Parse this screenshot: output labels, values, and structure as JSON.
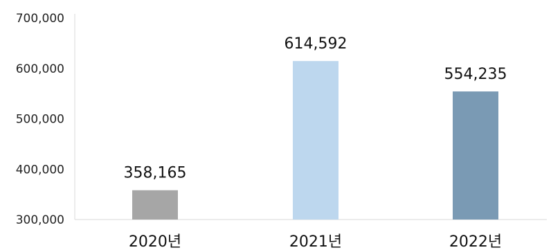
{
  "chart_data": {
    "type": "bar",
    "categories": [
      "2020년",
      "2021년",
      "2022년"
    ],
    "values": [
      358165,
      614592,
      554235
    ],
    "data_labels": [
      "358,165",
      "614,592",
      "554,235"
    ],
    "bar_colors": [
      "#a6a6a6",
      "#bdd7ee",
      "#7a9ab4"
    ],
    "ylim": [
      300000,
      700000
    ],
    "yticks": [
      300000,
      400000,
      500000,
      600000,
      700000
    ],
    "ytick_labels": [
      "300,000",
      "400,000",
      "500,000",
      "600,000",
      "700,000"
    ],
    "grid": false,
    "axis_color": "#d9d9d9"
  }
}
